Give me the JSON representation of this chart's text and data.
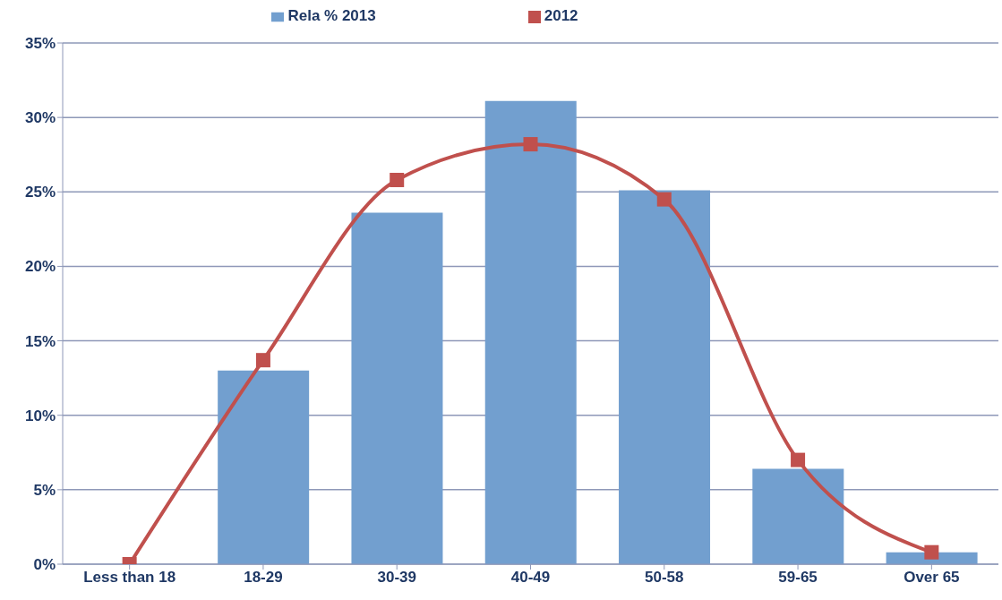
{
  "chart_data": {
    "type": "bar",
    "categories": [
      "Less than 18",
      "18-29",
      "30-39",
      "40-49",
      "50-58",
      "59-65",
      "Over 65"
    ],
    "series": [
      {
        "name": "Rela % 2013",
        "color": "#729fcf",
        "values": [
          0,
          13.0,
          23.6,
          31.1,
          25.1,
          6.4,
          0.8
        ]
      },
      {
        "name": "2012",
        "type": "line",
        "color": "#c0504d",
        "values": [
          0,
          13.7,
          25.8,
          28.2,
          24.5,
          7.0,
          0.8
        ]
      }
    ],
    "ylim": [
      0,
      35
    ],
    "yticks": [
      {
        "value": 0,
        "label": "0%"
      },
      {
        "value": 5,
        "label": "5%"
      },
      {
        "value": 10,
        "label": "10%"
      },
      {
        "value": 15,
        "label": "15%"
      },
      {
        "value": 20,
        "label": "20%"
      },
      {
        "value": 25,
        "label": "25%"
      },
      {
        "value": 30,
        "label": "30%"
      },
      {
        "value": 35,
        "label": "35%"
      }
    ],
    "grid": "y",
    "legend": "top",
    "marker": "square"
  }
}
